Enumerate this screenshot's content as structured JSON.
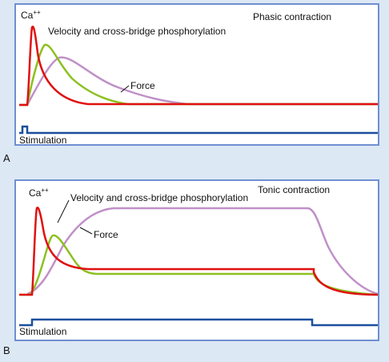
{
  "figure": {
    "panels": [
      {
        "letter": "A",
        "title": "Phasic contraction",
        "labels": {
          "ca": "Ca",
          "ca_sup": "++",
          "velocity": "Velocity and cross-bridge phosphorylation",
          "force": "Force",
          "stimulation": "Stimulation"
        }
      },
      {
        "letter": "B",
        "title": "Tonic contraction",
        "labels": {
          "ca": "Ca",
          "ca_sup": "++",
          "velocity": "Velocity and cross-bridge phosphorylation",
          "force": "Force",
          "stimulation": "Stimulation"
        }
      }
    ],
    "colors": {
      "ca_curve": "#e01010",
      "velocity_curve": "#8cc020",
      "force_curve": "#c090c8",
      "stimulation_line": "#1a4f9c",
      "panel_border": "#6f8fd0",
      "background": "#dde8f5"
    }
  }
}
